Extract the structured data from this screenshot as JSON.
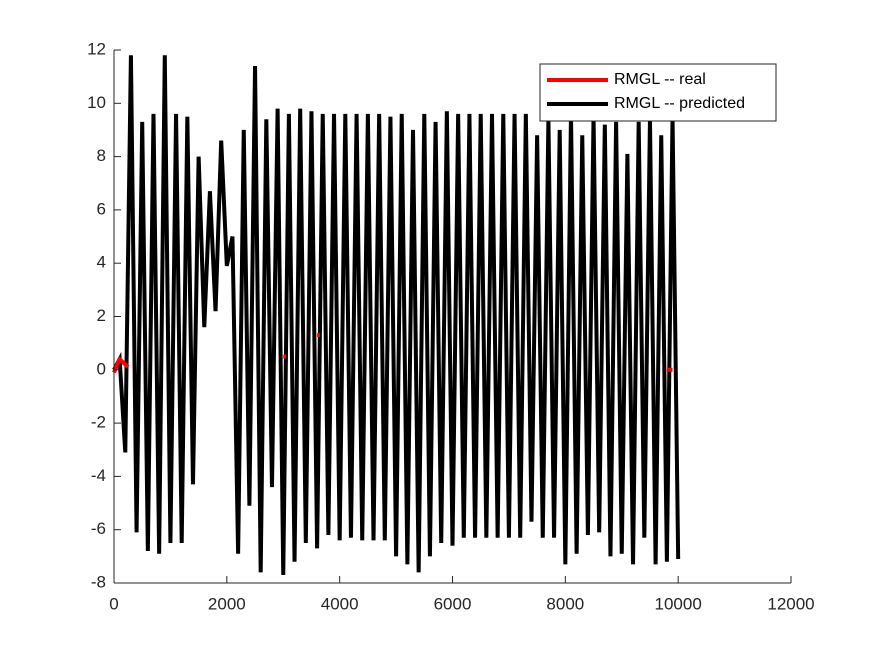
{
  "chart_data": {
    "type": "line",
    "xlim": [
      0,
      12000
    ],
    "xticks": [
      0,
      2000,
      4000,
      6000,
      8000,
      10000,
      12000
    ],
    "ylim": [
      -8,
      12
    ],
    "yticks": [
      -8,
      -6,
      -4,
      -2,
      0,
      2,
      4,
      6,
      8,
      10,
      12
    ],
    "grid": false,
    "legend": "upper right",
    "series": [
      {
        "name": "RMGL -- real",
        "color": "#ff0000",
        "x": [
          0,
          100,
          200,
          250,
          1000,
          3000,
          3050,
          3300,
          3600,
          3650,
          5000,
          9800,
          9900
        ],
        "values": [
          -0.1,
          0.4,
          0.2,
          0.1,
          null,
          0.5,
          0.5,
          null,
          1.3,
          1.3,
          null,
          0,
          0
        ]
      },
      {
        "name": "RMGL -- predicted",
        "color": "#000000",
        "x": [
          0,
          100,
          200,
          300,
          400,
          500,
          600,
          700,
          800,
          900,
          1000,
          1100,
          1200,
          1300,
          1400,
          1500,
          1600,
          1700,
          1800,
          1900,
          2000,
          2100,
          2200,
          2300,
          2400,
          2500,
          2600,
          2700,
          2800,
          2900,
          3000,
          3100,
          3200,
          3300,
          3400,
          3500,
          3600,
          3700,
          3800,
          3900,
          4000,
          4100,
          4200,
          4300,
          4400,
          4500,
          4600,
          4700,
          4800,
          4900,
          5000,
          5100,
          5200,
          5300,
          5400,
          5500,
          5600,
          5700,
          5800,
          5900,
          6000,
          6100,
          6200,
          6300,
          6400,
          6500,
          6600,
          6700,
          6800,
          6900,
          7000,
          7100,
          7200,
          7300,
          7400,
          7500,
          7600,
          7700,
          7800,
          7900,
          8000,
          8100,
          8200,
          8300,
          8400,
          8500,
          8600,
          8700,
          8800,
          8900,
          9000,
          9100,
          9200,
          9300,
          9400,
          9500,
          9600,
          9700,
          9800,
          9900,
          10000
        ],
        "values": [
          0,
          0.4,
          -3.1,
          11.8,
          -6.1,
          9.3,
          -6.8,
          9.6,
          -6.9,
          11.8,
          -6.5,
          9.6,
          -6.5,
          9.5,
          -4.3,
          8.0,
          1.6,
          6.7,
          2.2,
          8.6,
          3.9,
          5.0,
          -6.9,
          9.0,
          -5.1,
          11.4,
          -7.6,
          9.4,
          -4.4,
          9.8,
          -7.7,
          9.6,
          -7.2,
          9.8,
          -6.5,
          9.7,
          -6.7,
          9.6,
          -6.2,
          9.6,
          -6.4,
          9.6,
          -6.3,
          9.6,
          -6.4,
          9.6,
          -6.4,
          9.6,
          -6.4,
          9.5,
          -7.0,
          9.6,
          -7.3,
          9.0,
          -7.6,
          9.6,
          -7.0,
          9.3,
          -6.5,
          9.7,
          -6.6,
          9.6,
          -6.3,
          9.6,
          -6.3,
          9.6,
          -6.3,
          9.6,
          -6.3,
          9.6,
          -6.3,
          9.6,
          -6.3,
          9.6,
          -5.7,
          8.8,
          -6.3,
          9.4,
          -6.3,
          9.0,
          -7.3,
          9.6,
          -6.9,
          8.8,
          -6.2,
          9.5,
          -6.1,
          9.2,
          -7.0,
          9.3,
          -6.9,
          8.1,
          -7.3,
          9.3,
          -6.3,
          9.4,
          -7.3,
          8.8,
          -7.2,
          9.5,
          -7.1
        ]
      }
    ]
  }
}
